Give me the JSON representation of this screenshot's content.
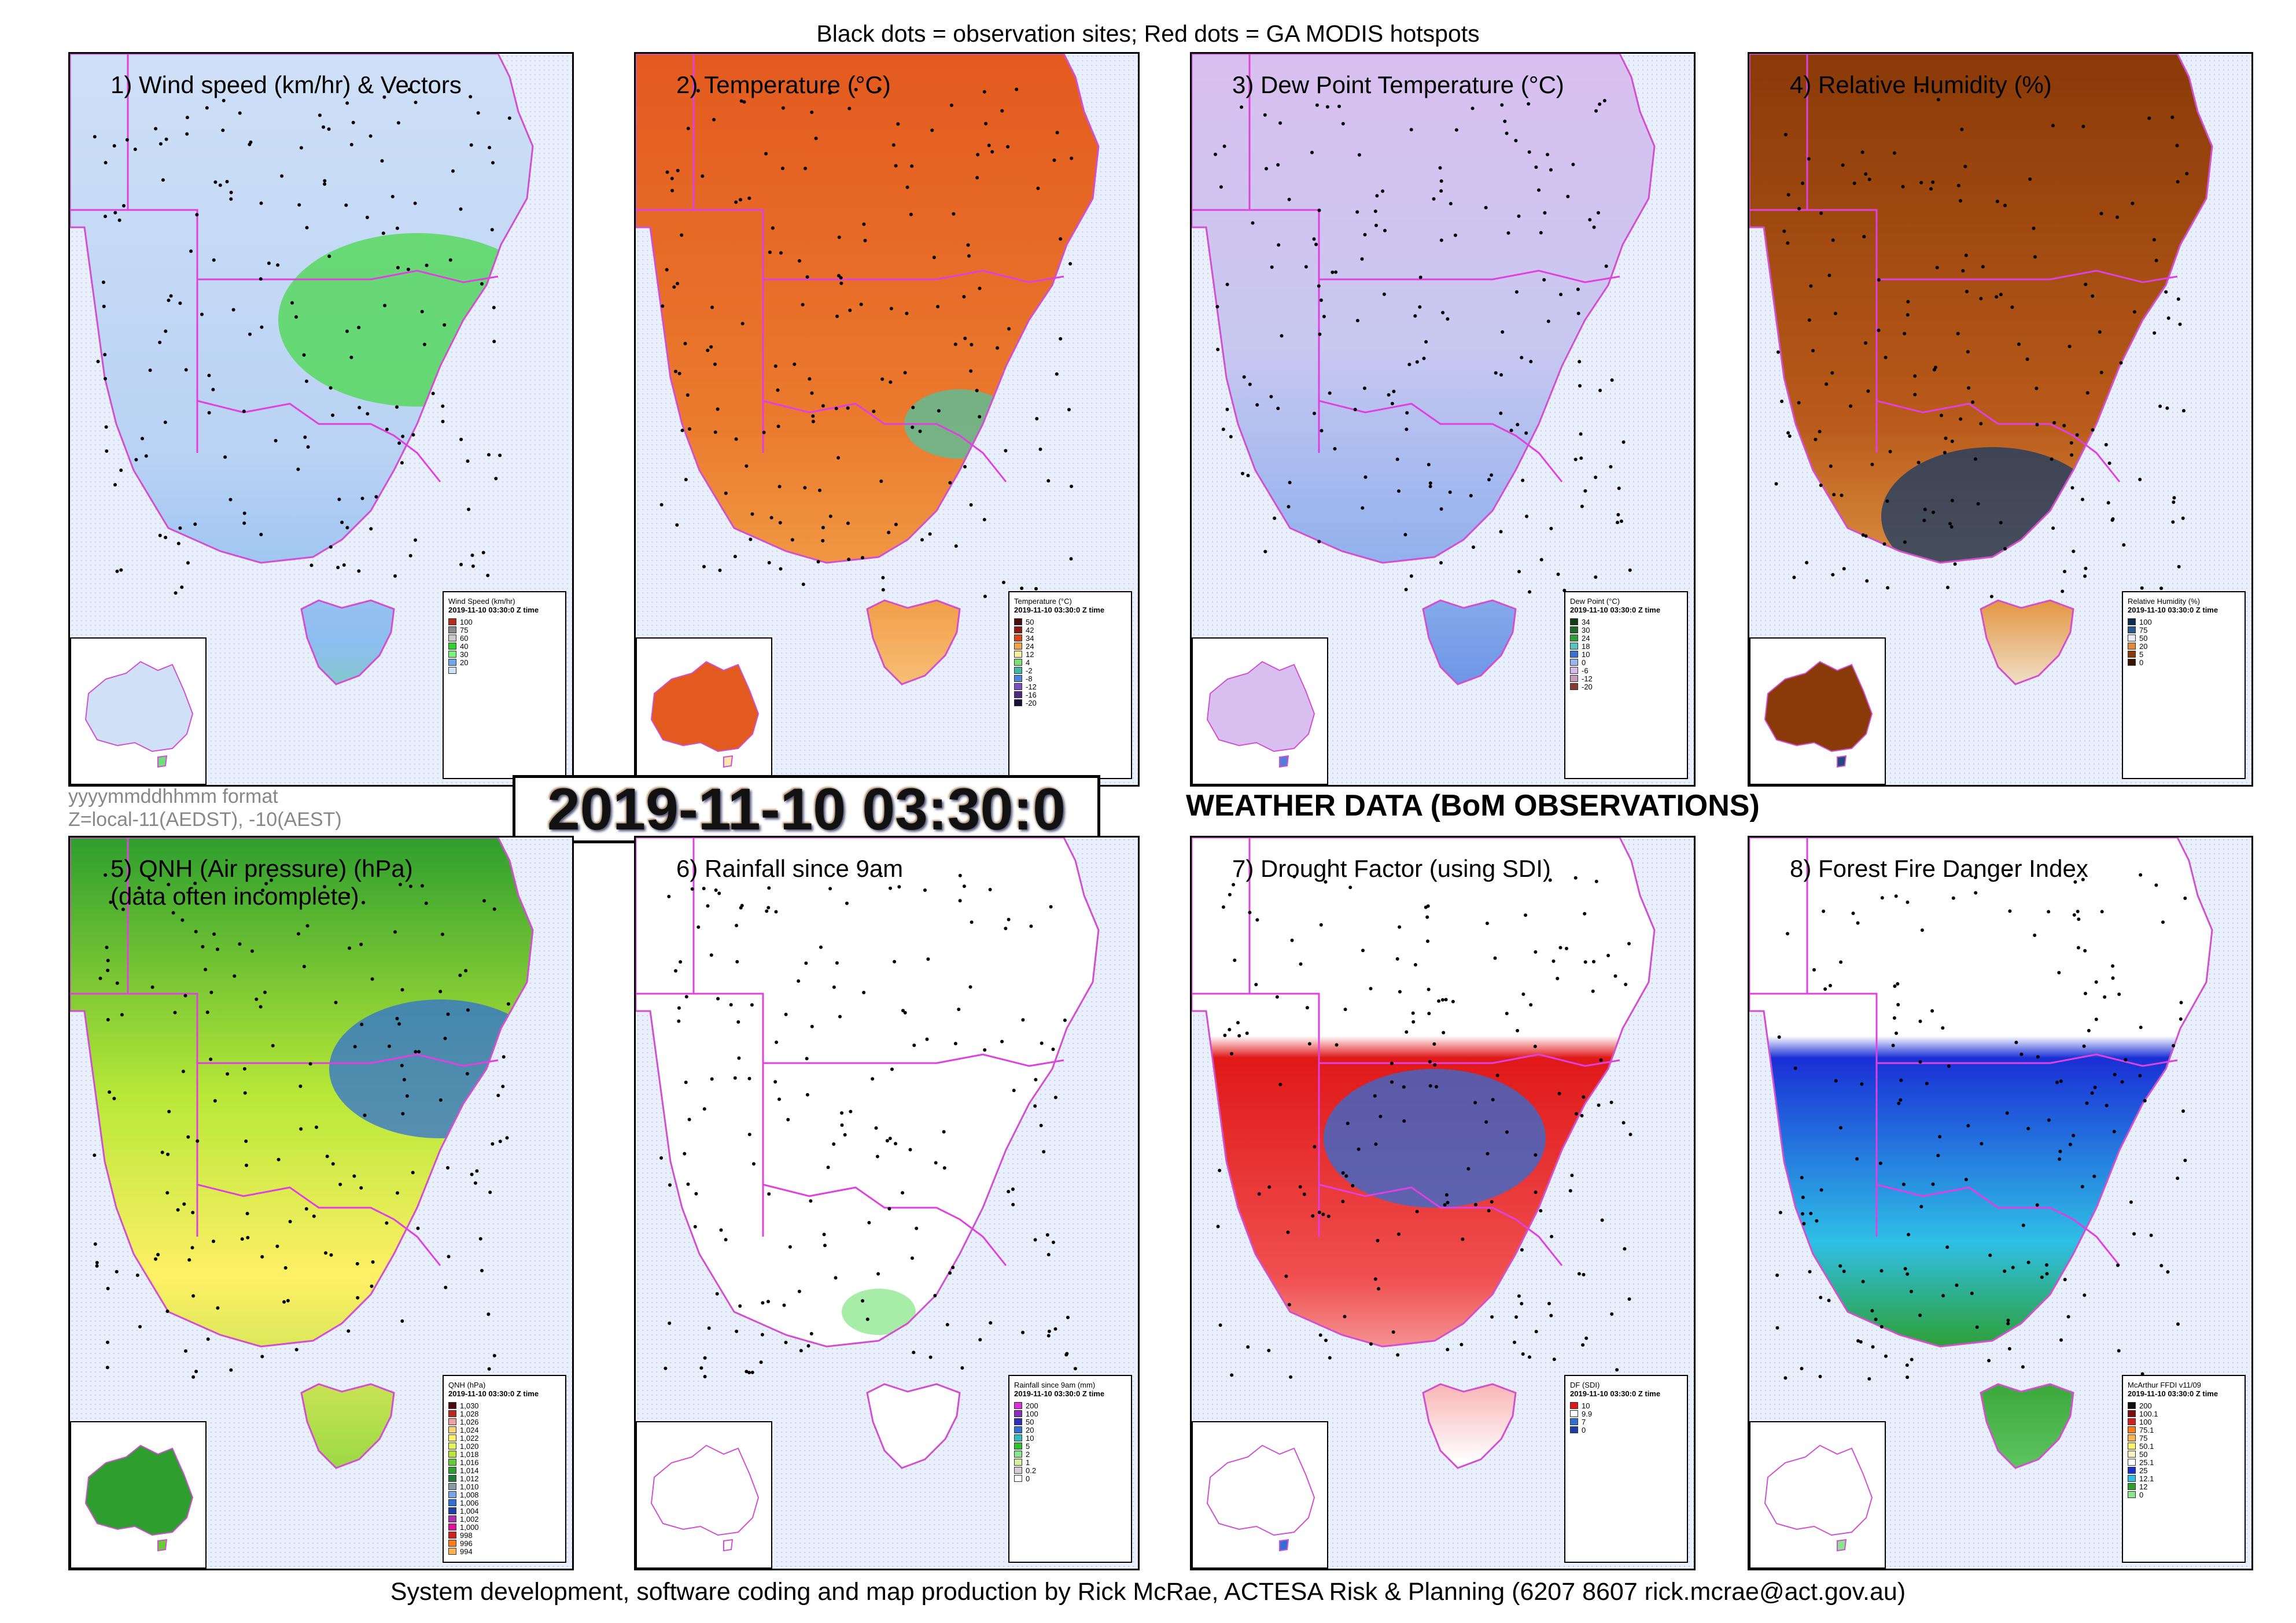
{
  "header": {
    "caption": "Black dots = observation sites; Red dots = GA MODIS hotspots"
  },
  "footer": {
    "credit": "System development, software coding and map production by Rick McRae, ACTESA Risk & Planning (6207 8607 rick.mcrae@act.gov.au)"
  },
  "timestamp": {
    "value": "2019-11-10 03:30:0",
    "format_line1": "yyyymmddhhmm format",
    "format_line2": "Z=local-11(AEDST), -10(AEST)"
  },
  "section_title": "WEATHER DATA (BoM OBSERVATIONS)",
  "panels": [
    {
      "title": "1) Wind speed (km/hr) & Vectors",
      "legend": {
        "title": "Wind Speed (km/hr)",
        "subtitle": "2019-11-10 03:30:0 Z time",
        "items": [
          {
            "label": "100",
            "color": "#b5291f"
          },
          {
            "label": "75",
            "color": "#8a8a8a"
          },
          {
            "label": "60",
            "color": "#c9c9c9"
          },
          {
            "label": "40",
            "color": "#2ed12e"
          },
          {
            "label": "30",
            "color": "#7ef07e"
          },
          {
            "label": "20",
            "color": "#6ea8ea"
          },
          {
            "label": "",
            "color": "#cfe0f7"
          }
        ]
      }
    },
    {
      "title": "2) Temperature (°C)",
      "legend": {
        "title": "Temperature (°C)",
        "subtitle": "2019-11-10 03:30:0 Z time",
        "items": [
          {
            "label": "50",
            "color": "#4a0e0e"
          },
          {
            "label": "42",
            "color": "#8b1a10"
          },
          {
            "label": "34",
            "color": "#d9461e"
          },
          {
            "label": "24",
            "color": "#f2a24a"
          },
          {
            "label": "12",
            "color": "#fce9a6"
          },
          {
            "label": "4",
            "color": "#7be07b"
          },
          {
            "label": "-2",
            "color": "#3fb8a8"
          },
          {
            "label": "-8",
            "color": "#4f82d8"
          },
          {
            "label": "-12",
            "color": "#7b4fc1"
          },
          {
            "label": "-16",
            "color": "#4a2b7f"
          },
          {
            "label": "-20",
            "color": "#1d0f33"
          }
        ]
      }
    },
    {
      "title": "3) Dew Point Temperature (°C)",
      "legend": {
        "title": "Dew Point (°C)",
        "subtitle": "2019-11-10 03:30:0 Z time",
        "items": [
          {
            "label": "34",
            "color": "#0f3d14"
          },
          {
            "label": "30",
            "color": "#1d6b27"
          },
          {
            "label": "24",
            "color": "#2f9f3c"
          },
          {
            "label": "18",
            "color": "#5ac4c2"
          },
          {
            "label": "10",
            "color": "#3d6fd6"
          },
          {
            "label": "0",
            "color": "#9ab6ef"
          },
          {
            "label": "-6",
            "color": "#d7b8ef"
          },
          {
            "label": "-12",
            "color": "#c79bb9"
          },
          {
            "label": "-20",
            "color": "#8b3a32"
          }
        ]
      }
    },
    {
      "title": "4) Relative Humidity (%)",
      "legend": {
        "title": "Relative Humidity (%)",
        "subtitle": "2019-11-10 03:30:0 Z time",
        "items": [
          {
            "label": "100",
            "color": "#0d2b55"
          },
          {
            "label": "75",
            "color": "#2d5a8e"
          },
          {
            "label": "50",
            "color": "#e8edf5"
          },
          {
            "label": "20",
            "color": "#e08a3a"
          },
          {
            "label": "5",
            "color": "#8a3a08"
          },
          {
            "label": "0",
            "color": "#3a1400"
          }
        ]
      }
    },
    {
      "title": "5) QNH (Air pressure) (hPa)\n(data often incomplete)",
      "legend": {
        "title": "QNH (hPa)",
        "subtitle": "2019-11-10 03:30:0 Z time",
        "items": [
          {
            "label": "1,030",
            "color": "#4a0e0e"
          },
          {
            "label": "1,028",
            "color": "#b5291f"
          },
          {
            "label": "1,026",
            "color": "#f0a0a0"
          },
          {
            "label": "1,024",
            "color": "#f7d27a"
          },
          {
            "label": "1,022",
            "color": "#fff066"
          },
          {
            "label": "1,020",
            "color": "#e6f25a"
          },
          {
            "label": "1,018",
            "color": "#b7e838"
          },
          {
            "label": "1,016",
            "color": "#66cc33"
          },
          {
            "label": "1,014",
            "color": "#2e9e2e"
          },
          {
            "label": "1,012",
            "color": "#227a3a"
          },
          {
            "label": "1,010",
            "color": "#8a9aa5"
          },
          {
            "label": "1,008",
            "color": "#7aa6e6"
          },
          {
            "label": "1,006",
            "color": "#2f6fd6"
          },
          {
            "label": "1,004",
            "color": "#1d3fa5"
          },
          {
            "label": "1,002",
            "color": "#b02fb0"
          },
          {
            "label": "1,000",
            "color": "#e0109a"
          },
          {
            "label": "998",
            "color": "#d41f1f"
          },
          {
            "label": "996",
            "color": "#ff7a1a"
          },
          {
            "label": "994",
            "color": "#ffb34d"
          }
        ]
      }
    },
    {
      "title": "6) Rainfall since 9am",
      "legend": {
        "title": "Rainfall since 9am (mm)",
        "subtitle": "2019-11-10 03:30:0 Z time",
        "items": [
          {
            "label": "200",
            "color": "#d82fd8"
          },
          {
            "label": "100",
            "color": "#8a2fbf"
          },
          {
            "label": "50",
            "color": "#2f2fbf"
          },
          {
            "label": "20",
            "color": "#2f6fd6"
          },
          {
            "label": "10",
            "color": "#2fbfbf"
          },
          {
            "label": "5",
            "color": "#2fbf2f"
          },
          {
            "label": "2",
            "color": "#8ae68a"
          },
          {
            "label": "1",
            "color": "#d6f0a0"
          },
          {
            "label": "0.2",
            "color": "#d0d0d0"
          },
          {
            "label": "0",
            "color": "#ffffff"
          }
        ]
      }
    },
    {
      "title": "7) Drought Factor (using SDI)",
      "legend": {
        "title": "DF (SDI)",
        "subtitle": "2019-11-10 03:30:0 Z time",
        "items": [
          {
            "label": "10",
            "color": "#e01818"
          },
          {
            "label": "9.9",
            "color": "#ffffff"
          },
          {
            "label": "7",
            "color": "#2f6fd6"
          },
          {
            "label": "0",
            "color": "#1d3fa5"
          }
        ]
      }
    },
    {
      "title": "8) Forest Fire Danger Index",
      "legend": {
        "title": "McArthur FFDI v11/09",
        "subtitle": "2019-11-10 03:30:0 Z time",
        "items": [
          {
            "label": "200",
            "color": "#111111"
          },
          {
            "label": "100.1",
            "color": "#7a0e0e"
          },
          {
            "label": "100",
            "color": "#d41f1f"
          },
          {
            "label": "75.1",
            "color": "#ff7a1a"
          },
          {
            "label": "75",
            "color": "#ffb34d"
          },
          {
            "label": "50.1",
            "color": "#fff066"
          },
          {
            "label": "50",
            "color": "#f7f0c0"
          },
          {
            "label": "25.1",
            "color": "#ffffff"
          },
          {
            "label": "25",
            "color": "#1a2fd6"
          },
          {
            "label": "12.1",
            "color": "#2fbfe6"
          },
          {
            "label": "12",
            "color": "#2e9e2e"
          },
          {
            "label": "0",
            "color": "#8ae68a"
          }
        ]
      }
    }
  ]
}
